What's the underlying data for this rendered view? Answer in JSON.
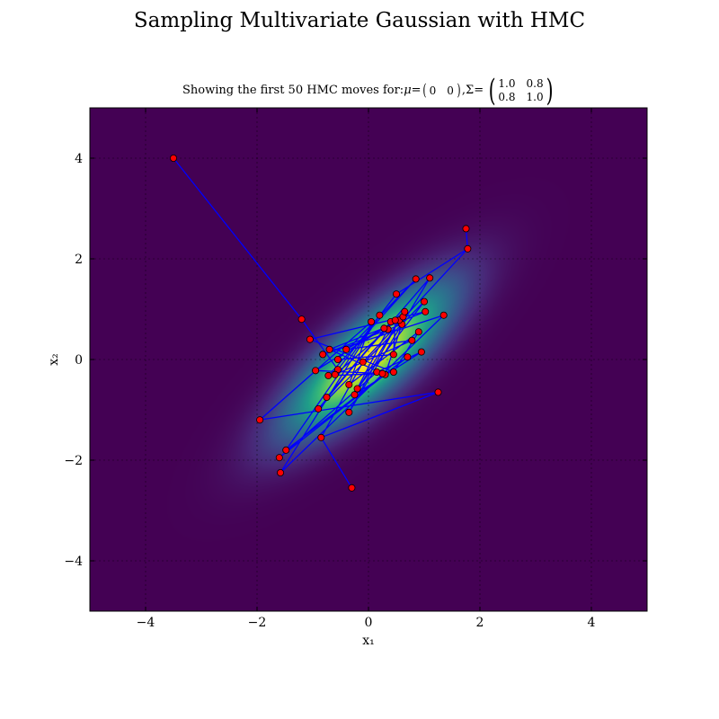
{
  "figure": {
    "suptitle": "Sampling Multivariate Gaussian with HMC",
    "subtitle_prefix": "Showing the first 50 HMC moves for: ",
    "mu_symbol": "μ",
    "sigma_symbol": "Σ",
    "equals": " = ",
    "comma": ", ",
    "mu": [
      "0",
      "0"
    ],
    "sigma": [
      "1.0",
      "0.8",
      "0.8",
      "1.0"
    ]
  },
  "chart_data": {
    "type": "scatter",
    "title": "Showing the first 50 HMC moves for: μ = (0 0), Σ = ((1.0, 0.8), (0.8, 1.0))",
    "xlabel": "x₁",
    "ylabel": "x₂",
    "xlim": [
      -5,
      5
    ],
    "ylim": [
      -5,
      5
    ],
    "xticks": [
      -4,
      -2,
      0,
      2,
      4
    ],
    "yticks": [
      -4,
      -2,
      0,
      2,
      4
    ],
    "tick_labels_x": [
      "−4",
      "−2",
      "0",
      "2",
      "4"
    ],
    "tick_labels_y": [
      "−4",
      "−2",
      "0",
      "2",
      "4"
    ],
    "grid": true,
    "background": "gaussian density heatmap (viridis)",
    "density": {
      "mean": [
        0,
        0
      ],
      "cov": [
        [
          1.0,
          0.8
        ],
        [
          0.8,
          1.0
        ]
      ]
    },
    "colors": {
      "path": "#0000ff",
      "marker": "#ff0000",
      "marker_edge": "#000000",
      "low": "#440154",
      "high": "#fde725"
    },
    "series": [
      {
        "name": "HMC moves",
        "x": [
          -3.5,
          -1.2,
          -0.55,
          0.5,
          1.78,
          -0.1,
          -0.85,
          1.25,
          -1.95,
          0.05,
          -0.35,
          0.9,
          0.45,
          -1.05,
          1.02,
          -0.7,
          0.3,
          0.6,
          -0.82,
          1.35,
          -1.58,
          0.2,
          -1.48,
          0.7,
          -1.6,
          0.15,
          0.95,
          -0.25,
          0.55,
          -0.35,
          1.1,
          -0.75,
          0.4,
          -0.9,
          1.0,
          -0.2,
          0.35,
          -0.6,
          0.78,
          -0.4,
          0.62,
          -0.95,
          0.25,
          -0.72,
          0.85,
          -0.55,
          0.45,
          0.48,
          0.28,
          0.65
        ],
        "y": [
          4.0,
          0.8,
          -0.2,
          1.3,
          2.2,
          -0.05,
          -1.55,
          -0.65,
          -1.2,
          0.75,
          -0.5,
          0.55,
          -0.25,
          0.4,
          0.95,
          0.2,
          -0.3,
          0.7,
          0.1,
          0.88,
          -2.25,
          0.88,
          -1.8,
          0.05,
          -1.95,
          -0.25,
          0.15,
          -0.7,
          0.78,
          -1.05,
          1.62,
          -0.75,
          0.75,
          -0.98,
          1.15,
          -0.58,
          0.6,
          -0.3,
          0.38,
          0.2,
          0.85,
          -0.22,
          -0.28,
          -0.32,
          1.6,
          0.0,
          0.1,
          0.78,
          0.62,
          0.95
        ]
      }
    ],
    "extra_points": {
      "x": [
        1.75,
        -0.3
      ],
      "y": [
        2.6,
        -2.55
      ]
    }
  }
}
